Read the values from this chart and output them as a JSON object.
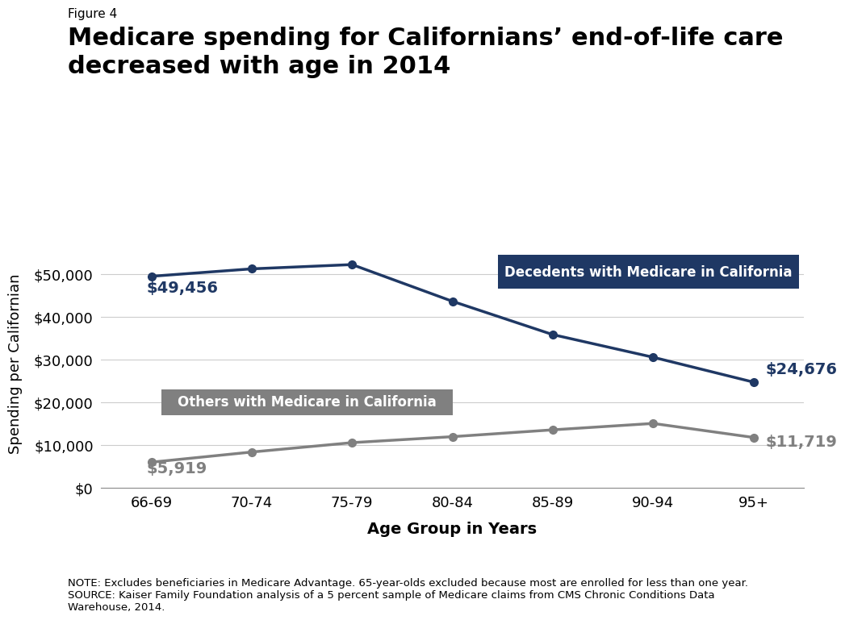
{
  "figure_label": "Figure 4",
  "title_line1": "Medicare spending for Californians’ end-of-life care",
  "title_line2": "decreased with age in 2014",
  "age_groups": [
    "66-69",
    "70-74",
    "75-79",
    "80-84",
    "85-89",
    "90-94",
    "95+"
  ],
  "decedents_values": [
    49456,
    51200,
    52200,
    43600,
    35800,
    30500,
    24676
  ],
  "others_values": [
    5919,
    8300,
    10500,
    11900,
    13500,
    15000,
    11719
  ],
  "decedents_color": "#1f3864",
  "others_color": "#808080",
  "decedents_label": "Decedents with Medicare in California",
  "others_label": "Others with Medicare in California",
  "decedents_box_color": "#1f3864",
  "others_box_color": "#808080",
  "ylabel": "Spending per Californian",
  "xlabel": "Age Group in Years",
  "ylim": [
    0,
    58000
  ],
  "yticks": [
    0,
    10000,
    20000,
    30000,
    40000,
    50000
  ],
  "ytick_labels": [
    "$0",
    "$10,000",
    "$20,000",
    "$30,000",
    "$40,000",
    "$50,000"
  ],
  "decedents_first_label": "$49,456",
  "decedents_last_label": "$24,676",
  "others_first_label": "$5,919",
  "others_last_label": "$11,719",
  "note_text": "NOTE: Excludes beneficiaries in Medicare Advantage. 65-year-olds excluded because most are enrolled for less than one year.\nSOURCE: Kaiser Family Foundation analysis of a 5 percent sample of Medicare claims from CMS Chronic Conditions Data\nWarehouse, 2014.",
  "background_color": "#ffffff",
  "line_width": 2.5,
  "marker_size": 7
}
